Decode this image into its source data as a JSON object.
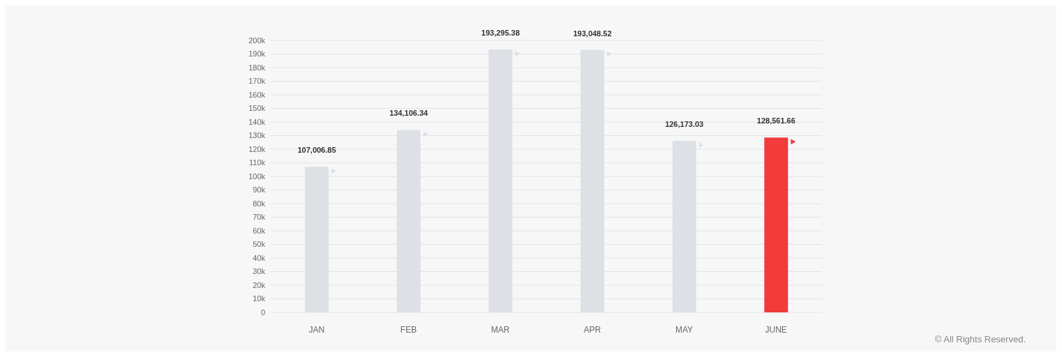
{
  "chart_data": {
    "type": "bar",
    "categories": [
      "JAN",
      "FEB",
      "MAR",
      "APR",
      "MAY",
      "JUNE"
    ],
    "values": [
      107006.85,
      134106.34,
      193295.38,
      193048.52,
      126173.03,
      128561.66
    ],
    "colors": [
      "#dde1e6",
      "#dde1e6",
      "#dde1e6",
      "#dde1e6",
      "#dde1e6",
      "#f23b3b"
    ],
    "value_labels": [
      "107,006.85",
      "134,106.34",
      "193,295.38",
      "193,048.52",
      "126,173.03",
      "128,561.66"
    ],
    "ylim": [
      0,
      200000
    ],
    "yticks": [
      {
        "value": 0,
        "label": "0"
      },
      {
        "value": 10000,
        "label": "10k"
      },
      {
        "value": 20000,
        "label": "20k"
      },
      {
        "value": 30000,
        "label": "30k"
      },
      {
        "value": 40000,
        "label": "40k"
      },
      {
        "value": 50000,
        "label": "50k"
      },
      {
        "value": 60000,
        "label": "60k"
      },
      {
        "value": 70000,
        "label": "70k"
      },
      {
        "value": 80000,
        "label": "80k"
      },
      {
        "value": 90000,
        "label": "90k"
      },
      {
        "value": 100000,
        "label": "100k"
      },
      {
        "value": 110000,
        "label": "110k"
      },
      {
        "value": 120000,
        "label": "120k"
      },
      {
        "value": 130000,
        "label": "130k"
      },
      {
        "value": 140000,
        "label": "140k"
      },
      {
        "value": 150000,
        "label": "150k"
      },
      {
        "value": 160000,
        "label": "160k"
      },
      {
        "value": 170000,
        "label": "170k"
      },
      {
        "value": 180000,
        "label": "180k"
      },
      {
        "value": 190000,
        "label": "190k"
      },
      {
        "value": 200000,
        "label": "200k"
      }
    ],
    "grid": "y",
    "legend": false,
    "annotations": [
      "© All Rights Reserved."
    ]
  }
}
